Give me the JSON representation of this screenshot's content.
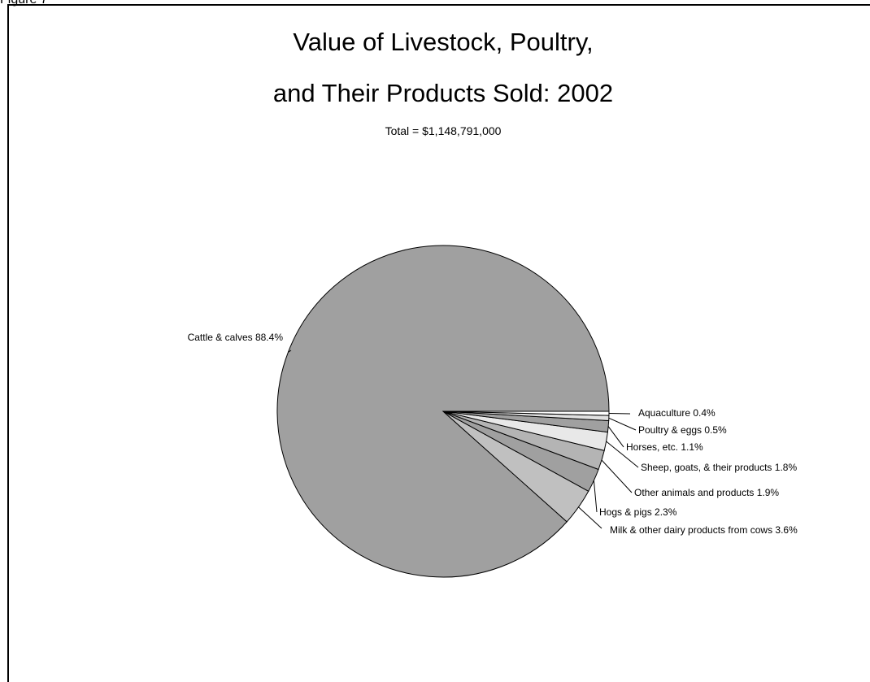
{
  "figure_label": "Figure 7",
  "chart_data": {
    "type": "pie",
    "title_lines": [
      "Value of Livestock, Poultry,",
      "and Their Products Sold:  2002"
    ],
    "subtitle": "Total = $1,148,791,000",
    "slices": [
      {
        "label": "Cattle & calves 88.4%",
        "value": 88.4,
        "color": "#a0a0a0"
      },
      {
        "label": "Milk & other dairy products from cows 3.6%",
        "value": 3.6,
        "color": "#c0c0c0"
      },
      {
        "label": "Hogs & pigs 2.3%",
        "value": 2.3,
        "color": "#a0a0a0"
      },
      {
        "label": "Other animals and products 1.9%",
        "value": 1.9,
        "color": "#b4b4b4"
      },
      {
        "label": "Sheep, goats, & their products 1.8%",
        "value": 1.8,
        "color": "#e8e8e8"
      },
      {
        "label": "Horses, etc. 1.1%",
        "value": 1.1,
        "color": "#a0a0a0"
      },
      {
        "label": "Poultry & eggs 0.5%",
        "value": 0.5,
        "color": "#e0e0e0"
      },
      {
        "label": "Aquaculture 0.4%",
        "value": 0.4,
        "color": "#ffffff"
      }
    ]
  }
}
